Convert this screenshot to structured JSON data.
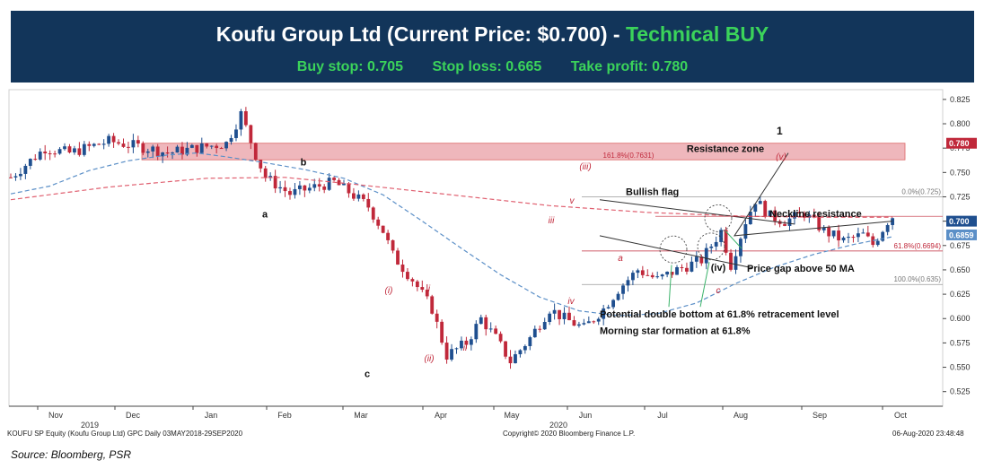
{
  "banner": {
    "company": "Koufu Group Ltd (Current Price: $0.700) -",
    "action": "Technical BUY",
    "buy_stop": "Buy stop: 0.705",
    "stop_loss": "Stop loss: 0.665",
    "take_profit": "Take profit: 0.780"
  },
  "footer": {
    "security": "KOUFU SP Equity (Koufu Group Ltd) GPC  Daily 03MAY2018-29SEP2020",
    "copyright": "Copyright© 2020 Bloomberg Finance L.P.",
    "timestamp": "06-Aug-2020 23:48:48",
    "source": "Source: Bloomberg, PSR"
  },
  "colors": {
    "banner_bg": "#12355a",
    "banner_text": "#ffffff",
    "banner_accent": "#3bd35a",
    "up_candle": "#1f4f8f",
    "down_candle": "#c0283a",
    "ma_short": "#5b8fc7",
    "ma_long": "#e06070",
    "resistance_fill": "#efb7bc",
    "annotation_red": "#c0283a"
  },
  "chart_data": {
    "type": "candlestick",
    "x_months": [
      "Nov",
      "Dec",
      "Jan",
      "Feb",
      "Mar",
      "Apr",
      "May",
      "Jun",
      "Jul",
      "Aug",
      "Sep",
      "Oct"
    ],
    "year_labels": [
      "2019",
      "2020"
    ],
    "y_ticks": [
      0.825,
      0.8,
      0.775,
      0.75,
      0.725,
      0.7,
      0.675,
      0.65,
      0.625,
      0.6,
      0.575,
      0.55,
      0.525
    ],
    "ylim": [
      0.51,
      0.835
    ],
    "price_labels": [
      {
        "text": "0.780",
        "value": 0.78,
        "color": "#c0283a"
      },
      {
        "text": "0.700",
        "value": 0.7,
        "color": "#1f4f8f"
      },
      {
        "text": "0.6859",
        "value": 0.6859,
        "color": "#5b8fc7"
      }
    ],
    "resistance_zone": {
      "label": "Resistance zone",
      "low": 0.763,
      "high": 0.78,
      "fib_label": "161.8%(0.7631)"
    },
    "fib_levels": [
      {
        "label": "0.0%(0.725)",
        "value": 0.725
      },
      {
        "label": "61.8%(0.6694)",
        "value": 0.6694
      },
      {
        "label": "100.0%(0.635)",
        "value": 0.635
      }
    ],
    "annotations": {
      "bullish_flag": "Bullish flag",
      "neckline": "Neckline resistance",
      "gap": "Price gap above 50 MA",
      "double_bottom": "Potential double bottom at 61.8% retracement level",
      "morning_star": "Morning star formation at 61.8%",
      "target_wave": "1"
    },
    "wave_labels": [
      {
        "text": "a",
        "style": "black"
      },
      {
        "text": "b",
        "style": "black"
      },
      {
        "text": "c",
        "style": "black"
      },
      {
        "text": "(i)",
        "style": "red"
      },
      {
        "text": "(ii)",
        "style": "red"
      },
      {
        "text": "i",
        "style": "red"
      },
      {
        "text": "ii",
        "style": "red"
      },
      {
        "text": "iii",
        "style": "red"
      },
      {
        "text": "(iii)",
        "style": "red"
      },
      {
        "text": "iv",
        "style": "red"
      },
      {
        "text": "v",
        "style": "red"
      },
      {
        "text": "(iv)",
        "style": "black"
      },
      {
        "text": "(v)",
        "style": "red"
      },
      {
        "text": "a",
        "style": "red"
      },
      {
        "text": "c",
        "style": "red"
      }
    ],
    "anchors": [
      [
        0,
        0.745
      ],
      [
        7,
        0.775
      ],
      [
        12,
        0.77
      ],
      [
        20,
        0.782
      ],
      [
        28,
        0.775
      ],
      [
        32,
        0.77
      ],
      [
        38,
        0.775
      ],
      [
        44,
        0.78
      ],
      [
        47,
        0.81
      ],
      [
        50,
        0.768
      ],
      [
        52,
        0.745
      ],
      [
        57,
        0.728
      ],
      [
        62,
        0.735
      ],
      [
        66,
        0.74
      ],
      [
        69,
        0.73
      ],
      [
        73,
        0.715
      ],
      [
        76,
        0.69
      ],
      [
        78,
        0.665
      ],
      [
        82,
        0.64
      ],
      [
        86,
        0.61
      ],
      [
        89,
        0.562
      ],
      [
        93,
        0.575
      ],
      [
        96,
        0.6
      ],
      [
        99,
        0.58
      ],
      [
        102,
        0.556
      ],
      [
        106,
        0.58
      ],
      [
        110,
        0.61
      ],
      [
        113,
        0.6
      ],
      [
        117,
        0.59
      ],
      [
        121,
        0.61
      ],
      [
        124,
        0.63
      ],
      [
        128,
        0.65
      ],
      [
        132,
        0.64
      ],
      [
        136,
        0.65
      ],
      [
        141,
        0.66
      ],
      [
        145,
        0.69
      ],
      [
        147,
        0.655
      ],
      [
        150,
        0.7
      ],
      [
        152,
        0.722
      ],
      [
        155,
        0.705
      ],
      [
        158,
        0.7
      ],
      [
        162,
        0.708
      ],
      [
        166,
        0.69
      ],
      [
        170,
        0.68
      ],
      [
        174,
        0.686
      ],
      [
        176,
        0.676
      ],
      [
        179,
        0.7
      ],
      [
        180,
        0.705
      ]
    ],
    "ma50": [
      [
        0,
        0.728
      ],
      [
        8,
        0.736
      ],
      [
        16,
        0.752
      ],
      [
        24,
        0.762
      ],
      [
        32,
        0.768
      ],
      [
        38,
        0.77
      ],
      [
        44,
        0.766
      ],
      [
        52,
        0.76
      ],
      [
        60,
        0.753
      ],
      [
        68,
        0.744
      ],
      [
        76,
        0.727
      ],
      [
        84,
        0.7
      ],
      [
        92,
        0.672
      ],
      [
        100,
        0.645
      ],
      [
        108,
        0.622
      ],
      [
        116,
        0.608
      ],
      [
        124,
        0.603
      ],
      [
        132,
        0.605
      ],
      [
        140,
        0.616
      ],
      [
        148,
        0.636
      ],
      [
        156,
        0.653
      ],
      [
        164,
        0.666
      ],
      [
        172,
        0.676
      ],
      [
        180,
        0.684
      ]
    ],
    "ma200": [
      [
        0,
        0.722
      ],
      [
        20,
        0.735
      ],
      [
        40,
        0.744
      ],
      [
        56,
        0.745
      ],
      [
        70,
        0.738
      ],
      [
        90,
        0.727
      ],
      [
        110,
        0.716
      ],
      [
        130,
        0.709
      ],
      [
        150,
        0.705
      ],
      [
        165,
        0.704
      ],
      [
        180,
        0.704
      ]
    ]
  }
}
